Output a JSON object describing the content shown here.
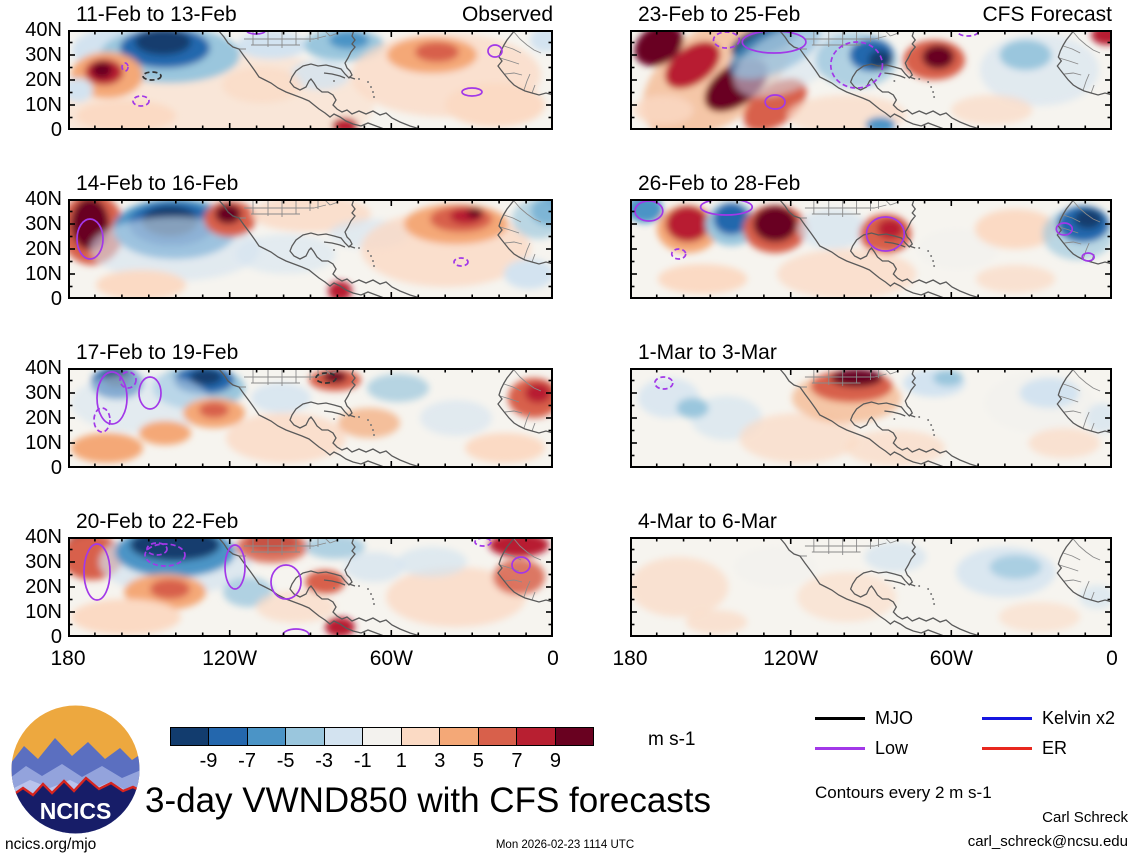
{
  "figure": {
    "panels": [
      {
        "title": "11-Feb to 13-Feb",
        "corner": "Observed"
      },
      {
        "title": "23-Feb to 25-Feb",
        "corner": "CFS Forecast"
      },
      {
        "title": "14-Feb to 16-Feb",
        "corner": ""
      },
      {
        "title": "26-Feb to 28-Feb",
        "corner": ""
      },
      {
        "title": "17-Feb to 19-Feb",
        "corner": ""
      },
      {
        "title": "1-Mar to 3-Mar",
        "corner": ""
      },
      {
        "title": "20-Feb to 22-Feb",
        "corner": ""
      },
      {
        "title": "4-Mar to 6-Mar",
        "corner": ""
      }
    ],
    "y_axis": {
      "labels": [
        "40N",
        "30N",
        "20N",
        "10N",
        "0"
      ]
    },
    "x_axis": {
      "labels": [
        "180",
        "120W",
        "60W",
        "0"
      ]
    }
  },
  "colorbar": {
    "ticks": [
      "-9",
      "-7",
      "-5",
      "-3",
      "-1",
      "1",
      "3",
      "5",
      "7",
      "9"
    ],
    "colors": [
      "#123c6e",
      "#2467ad",
      "#4b94c6",
      "#9ac6dd",
      "#d3e3f0",
      "#f3f2ee",
      "#fbdac4",
      "#f4a877",
      "#d8604b",
      "#b81f31",
      "#690120"
    ],
    "units": "m s-1"
  },
  "legend": {
    "items": [
      {
        "label": "MJO",
        "color": "#000000"
      },
      {
        "label": "Kelvin x2",
        "color": "#1616e0"
      },
      {
        "label": "Low",
        "color": "#a238e8"
      },
      {
        "label": "ER",
        "color": "#e8281e"
      }
    ],
    "note": "Contours every 2 m s-1"
  },
  "footer": {
    "title": "3-day VWND850 with CFS forecasts",
    "logo_text": "NCICS",
    "url": "ncics.org/mjo",
    "timestamp": "Mon 2026-02-23 1114 UTC",
    "author": "Carl Schreck",
    "email": "carl_schreck@ncsu.edu"
  },
  "chart_data": {
    "type": "heatmap",
    "title": "3-day VWND850 with CFS forecasts",
    "variable": "VWND850",
    "units": "m s-1",
    "levels": [
      -9,
      -7,
      -5,
      -3,
      -1,
      1,
      3,
      5,
      7,
      9
    ],
    "colors": [
      "#123c6e",
      "#2467ad",
      "#4b94c6",
      "#9ac6dd",
      "#d3e3f0",
      "#f3f2ee",
      "#fbdac4",
      "#f4a877",
      "#d8604b",
      "#b81f31",
      "#690120"
    ],
    "lat_ticks": [
      "0",
      "10N",
      "20N",
      "30N",
      "40N"
    ],
    "lon_ticks": [
      "180",
      "120W",
      "60W",
      "0"
    ],
    "contour_interval": "2 m s-1",
    "wave_contour_legend": [
      "MJO",
      "Kelvin x2",
      "Low",
      "ER"
    ],
    "panels": [
      {
        "title": "11-Feb to 13-Feb",
        "column": "Observed"
      },
      {
        "title": "23-Feb to 25-Feb",
        "column": "CFS Forecast"
      },
      {
        "title": "14-Feb to 16-Feb",
        "column": "Observed"
      },
      {
        "title": "26-Feb to 28-Feb",
        "column": "CFS Forecast"
      },
      {
        "title": "17-Feb to 19-Feb",
        "column": "Observed"
      },
      {
        "title": "1-Mar to 3-Mar",
        "column": "CFS Forecast"
      },
      {
        "title": "20-Feb to 22-Feb",
        "column": "Observed"
      },
      {
        "title": "4-Mar to 6-Mar",
        "column": "CFS Forecast"
      }
    ],
    "timestamp": "Mon 2026-02-23 1114 UTC",
    "credit": "Carl Schreck / carl_schreck@ncsu.edu / ncics.org/mjo"
  }
}
